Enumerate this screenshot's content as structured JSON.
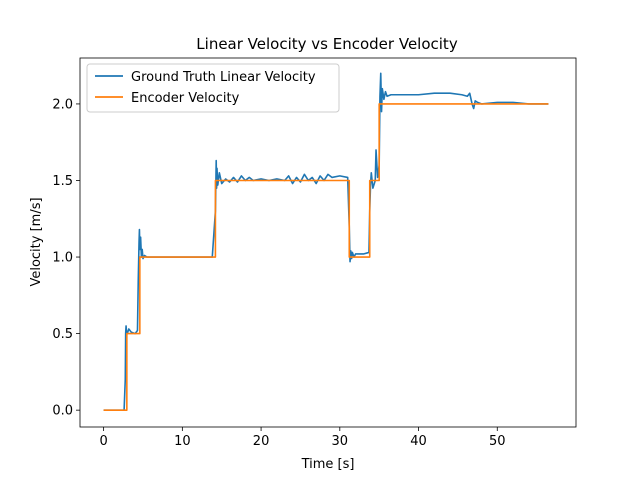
{
  "chart_data": {
    "type": "line",
    "title": "Linear Velocity vs Encoder Velocity",
    "xlabel": "Time [s]",
    "ylabel": "Velocity [m/s]",
    "xlim": [
      -3,
      60
    ],
    "ylim": [
      -0.11,
      2.3
    ],
    "xticks": [
      0,
      10,
      20,
      30,
      40,
      50
    ],
    "yticks": [
      0.0,
      0.5,
      1.0,
      1.5,
      2.0
    ],
    "xtick_labels": [
      "0",
      "10",
      "20",
      "30",
      "40",
      "50"
    ],
    "ytick_labels": [
      "0.0",
      "0.5",
      "1.0",
      "1.5",
      "2.0"
    ],
    "grid": false,
    "legend_position": "top-left",
    "series": [
      {
        "name": "Ground Truth Linear Velocity",
        "color": "#1f77b4",
        "x": [
          0,
          0.5,
          1,
          1.5,
          2,
          2.6,
          2.75,
          2.8,
          2.85,
          2.9,
          3.0,
          3.2,
          3.5,
          4.0,
          4.3,
          4.4,
          4.5,
          4.55,
          4.6,
          4.7,
          4.8,
          4.9,
          5.0,
          5.2,
          5.5,
          6,
          8,
          10,
          12,
          13.8,
          14.2,
          14.3,
          14.35,
          14.4,
          14.5,
          14.7,
          15.0,
          15.5,
          16.0,
          16.5,
          17.0,
          17.5,
          18.0,
          18.5,
          19.0,
          20,
          21,
          22,
          23,
          23.5,
          24,
          24.5,
          25,
          25.5,
          26,
          26.5,
          27,
          27.5,
          28,
          28.5,
          29,
          30,
          31.0,
          31.2,
          31.3,
          31.4,
          31.5,
          31.6,
          31.8,
          32.0,
          32.5,
          33.0,
          33.7,
          33.8,
          33.9,
          34.0,
          34.2,
          34.5,
          34.6,
          34.8,
          35.0,
          35.1,
          35.2,
          35.3,
          35.4,
          35.6,
          35.8,
          36.0,
          36.5,
          37,
          38,
          40,
          42,
          44,
          45.5,
          46.2,
          46.5,
          46.8,
          47.0,
          47.2,
          47.5,
          48,
          50,
          52,
          54,
          56.5
        ],
        "y": [
          0.0,
          0.0,
          0.0,
          0.0,
          0.0,
          0.0,
          0.2,
          0.5,
          0.55,
          0.52,
          0.5,
          0.53,
          0.51,
          0.5,
          0.52,
          0.85,
          1.1,
          1.18,
          1.05,
          1.13,
          1.0,
          1.05,
          0.99,
          1.01,
          1.0,
          1.0,
          1.0,
          1.0,
          1.0,
          1.0,
          1.3,
          1.63,
          1.45,
          1.58,
          1.47,
          1.55,
          1.48,
          1.51,
          1.49,
          1.52,
          1.49,
          1.53,
          1.5,
          1.52,
          1.5,
          1.51,
          1.5,
          1.51,
          1.5,
          1.53,
          1.48,
          1.52,
          1.49,
          1.54,
          1.5,
          1.52,
          1.48,
          1.53,
          1.5,
          1.54,
          1.52,
          1.53,
          1.52,
          1.2,
          0.97,
          1.04,
          0.99,
          1.03,
          1.0,
          1.02,
          1.02,
          1.02,
          1.03,
          1.3,
          1.47,
          1.55,
          1.45,
          1.5,
          1.7,
          1.52,
          1.6,
          2.05,
          2.2,
          1.95,
          2.1,
          2.03,
          2.08,
          2.05,
          2.06,
          2.06,
          2.06,
          2.06,
          2.07,
          2.07,
          2.06,
          2.05,
          2.07,
          2.0,
          1.97,
          2.02,
          2.01,
          2.0,
          2.01,
          2.01,
          2.0,
          2.0
        ]
      },
      {
        "name": "Encoder Velocity",
        "color": "#ff7f0e",
        "x": [
          0,
          2.95,
          2.95,
          4.6,
          4.6,
          14.2,
          14.2,
          31.2,
          31.2,
          33.8,
          33.8,
          35.0,
          35.0,
          56.5
        ],
        "y": [
          0.0,
          0.0,
          0.5,
          0.5,
          1.0,
          1.0,
          1.5,
          1.5,
          1.0,
          1.0,
          1.5,
          1.5,
          2.0,
          2.0
        ]
      }
    ]
  }
}
